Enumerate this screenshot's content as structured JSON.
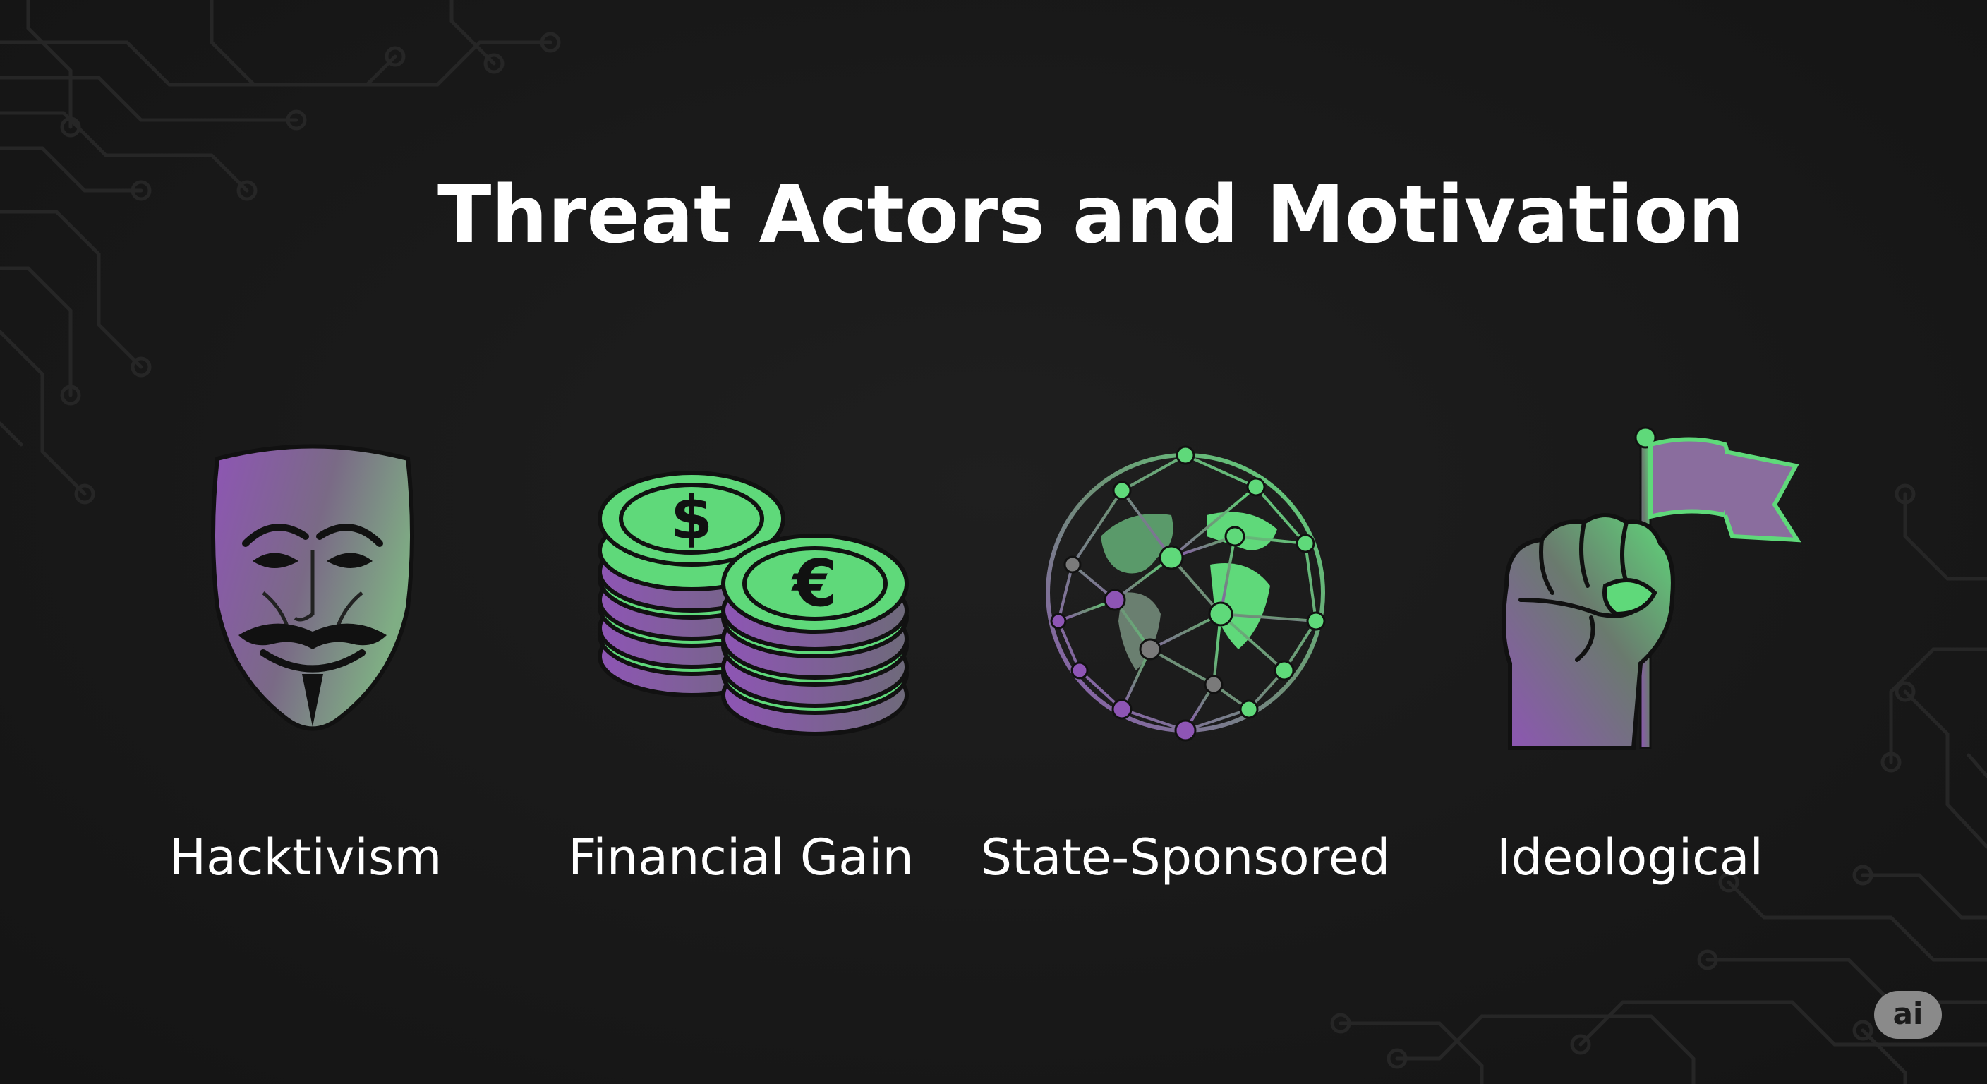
{
  "slide": {
    "title": "Threat Actors and Motivation",
    "badge": "ai"
  },
  "cards": [
    {
      "label": "Hacktivism",
      "icon": "guy-fawkes-mask-icon"
    },
    {
      "label": "Financial Gain",
      "icon": "coin-stacks-icon"
    },
    {
      "label": "State-Sponsored",
      "icon": "network-globe-icon"
    },
    {
      "label": "Ideological",
      "icon": "fist-flag-icon"
    }
  ],
  "coins": {
    "front_symbol": "€",
    "back_symbol": "$"
  },
  "colors": {
    "background": "#171717",
    "accent_green": "#5fd97a",
    "accent_purple": "#8e55b5",
    "text": "#ffffff"
  }
}
